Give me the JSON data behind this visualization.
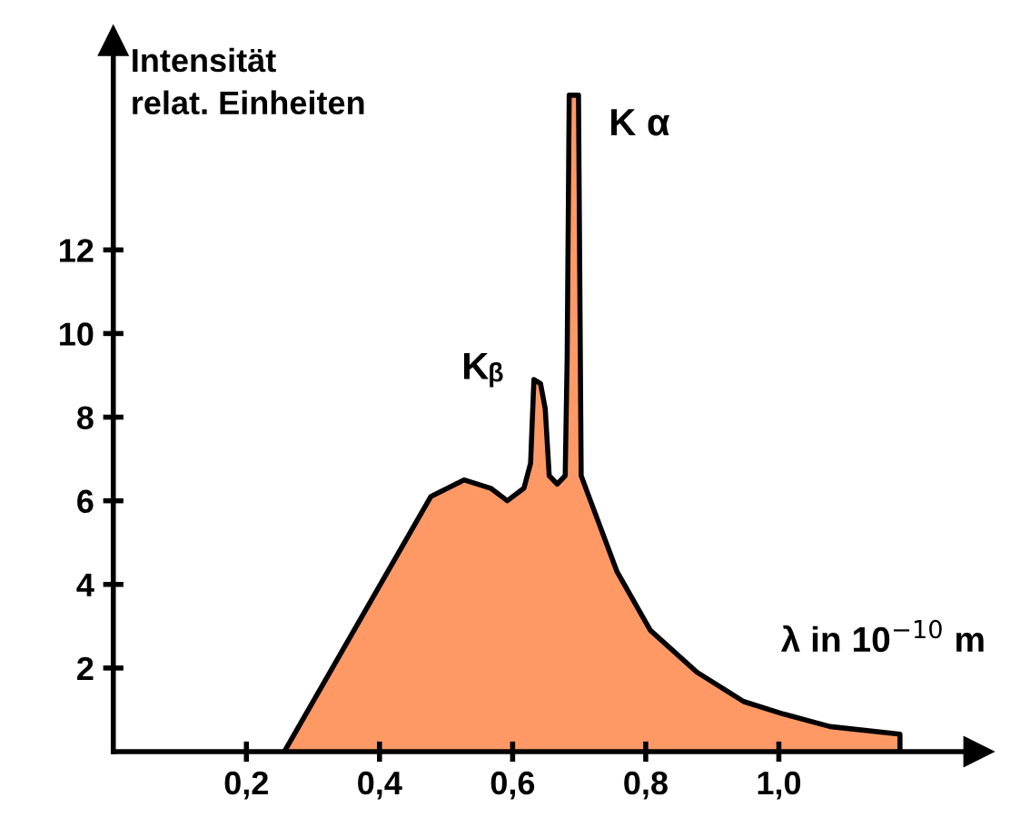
{
  "chart_data": {
    "type": "area",
    "xlabel": "λ in 10$^{−10}$ m",
    "ylabel": "Intensität\nrelat. Einheiten",
    "x": [
      0.257,
      0.477,
      0.527,
      0.567,
      0.592,
      0.617,
      0.627,
      0.632,
      0.642,
      0.649,
      0.655,
      0.667,
      0.679,
      0.682,
      0.685,
      0.699,
      0.703,
      0.717,
      0.757,
      0.807,
      0.877,
      0.947,
      1.007,
      1.077,
      1.182,
      1.182
    ],
    "series": [
      {
        "color": "#fe9966",
        "values": [
          0,
          6.1,
          6.5,
          6.3,
          6.0,
          6.3,
          6.9,
          8.9,
          8.8,
          8.2,
          6.6,
          6.4,
          6.6,
          9.5,
          15.7,
          15.7,
          6.6,
          6.0,
          4.3,
          2.9,
          1.9,
          1.2,
          0.9,
          0.6,
          0.42,
          0
        ]
      }
    ],
    "annotations": [
      {
        "text": "K α",
        "x": 0.699,
        "y": 15.7
      },
      {
        "text": "Kᵦ",
        "x": 0.632,
        "y": 8.9
      }
    ],
    "xlim": [
      0,
      1.3
    ],
    "ylim": [
      0,
      17
    ],
    "xticks": [
      {
        "value": 0.2,
        "label": "0,2"
      },
      {
        "value": 0.4,
        "label": "0,4"
      },
      {
        "value": 0.6,
        "label": "0,6"
      },
      {
        "value": 0.8,
        "label": "0,8"
      },
      {
        "value": 1.0,
        "label": "1,0"
      }
    ],
    "yticks": [
      2,
      4,
      6,
      8,
      10,
      12
    ],
    "grid": false,
    "legend": false
  }
}
